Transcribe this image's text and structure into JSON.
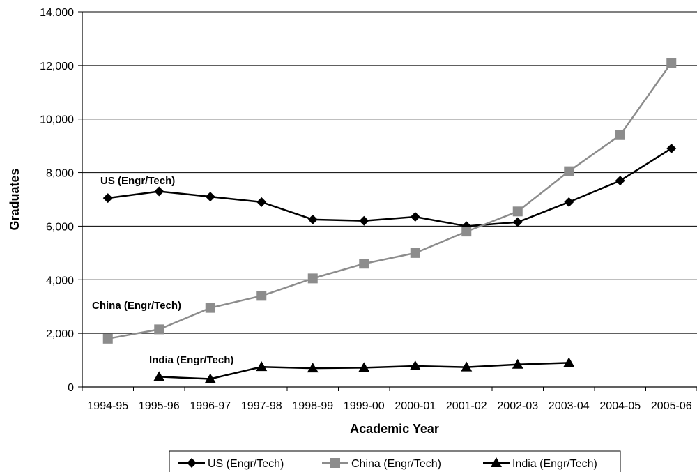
{
  "chart_data": {
    "type": "line",
    "title": "",
    "xlabel": "Academic Year",
    "ylabel": "Graduates",
    "ylim": [
      0,
      14000
    ],
    "yticks": [
      "0",
      "2,000",
      "4,000",
      "6,000",
      "8,000",
      "10,000",
      "12,000",
      "14,000"
    ],
    "categories": [
      "1994-95",
      "1995-96",
      "1996-97",
      "1997-98",
      "1998-99",
      "1999-00",
      "2000-01",
      "2001-02",
      "2002-03",
      "2003-04",
      "2004-05",
      "2005-06"
    ],
    "grid": "horizontal",
    "legend_position": "bottom",
    "series": [
      {
        "name": "US (Engr/Tech)",
        "marker": "diamond",
        "color": "#000000",
        "values": [
          7050,
          7300,
          7100,
          6900,
          6250,
          6200,
          6350,
          6000,
          6150,
          6900,
          7700,
          8900
        ],
        "annotation": "US (Engr/Tech)"
      },
      {
        "name": "China (Engr/Tech)",
        "marker": "square",
        "color": "#8c8c8c",
        "values": [
          1800,
          2150,
          2950,
          3400,
          4050,
          4600,
          5000,
          5800,
          6550,
          8050,
          9400,
          12100
        ],
        "annotation": "China (Engr/Tech)"
      },
      {
        "name": "India (Engr/Tech)",
        "marker": "triangle",
        "color": "#000000",
        "values": [
          null,
          380,
          300,
          750,
          700,
          720,
          780,
          740,
          840,
          900,
          null,
          null
        ],
        "annotation": "India (Engr/Tech)"
      }
    ]
  }
}
